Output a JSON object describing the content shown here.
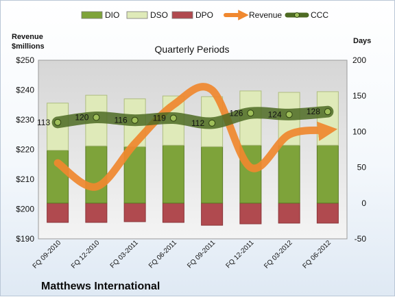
{
  "chart_data": {
    "type": "bar",
    "title": "Quarterly Periods",
    "company": "Matthews International",
    "left_axis_title": [
      "Revenue",
      "$millions"
    ],
    "right_axis_title": "Days",
    "categories": [
      "FQ 09-2010",
      "FQ 12-2010",
      "FQ 03-2011",
      "FQ 06-2011",
      "FQ 09-2011",
      "FQ 12-2011",
      "FQ 03-2012",
      "FQ 06-2012"
    ],
    "left_axis": {
      "range": [
        190,
        250
      ],
      "ticks": [
        "$190",
        "$200",
        "$210",
        "$220",
        "$230",
        "$240",
        "$250"
      ],
      "values": [
        190,
        200,
        210,
        220,
        230,
        240,
        250
      ]
    },
    "right_axis": {
      "range": [
        -50,
        200
      ],
      "ticks": [
        "-50",
        "0",
        "50",
        "100",
        "150",
        "200"
      ],
      "values": [
        -50,
        0,
        50,
        100,
        150,
        200
      ]
    },
    "legend": [
      "DIO",
      "DSO",
      "DPO",
      "Revenue",
      "CCC"
    ],
    "legend_position": "top",
    "series": [
      {
        "name": "DIO",
        "axis": "right",
        "color": "#7ea33a",
        "values": [
          74,
          80,
          79,
          81,
          79,
          81,
          81,
          81
        ]
      },
      {
        "name": "DSO",
        "axis": "right",
        "color": "#dfeab9",
        "values": [
          66,
          71,
          67,
          69,
          70,
          76,
          74,
          75
        ]
      },
      {
        "name": "DPO",
        "axis": "right",
        "color": "#b04a4f",
        "values": [
          -27,
          -27,
          -26,
          -27,
          -31,
          -29,
          -28,
          -28
        ]
      },
      {
        "name": "Revenue",
        "axis": "left",
        "color": "#f0882f",
        "values": [
          215.5,
          207.5,
          222,
          235,
          240,
          214,
          225,
          226.5
        ]
      },
      {
        "name": "CCC",
        "axis": "right",
        "color": "#5a7a2a",
        "values": [
          113,
          120,
          116,
          119,
          112,
          126,
          124,
          128
        ],
        "labels": [
          "113",
          "120",
          "116",
          "119",
          "112",
          "126",
          "124",
          "128"
        ]
      }
    ],
    "grid": false,
    "colors": {
      "plot_bg_top": "#d9d9d9",
      "plot_bg_bottom": "#f2f2f2",
      "ccc_band": "#4e6b23"
    }
  }
}
